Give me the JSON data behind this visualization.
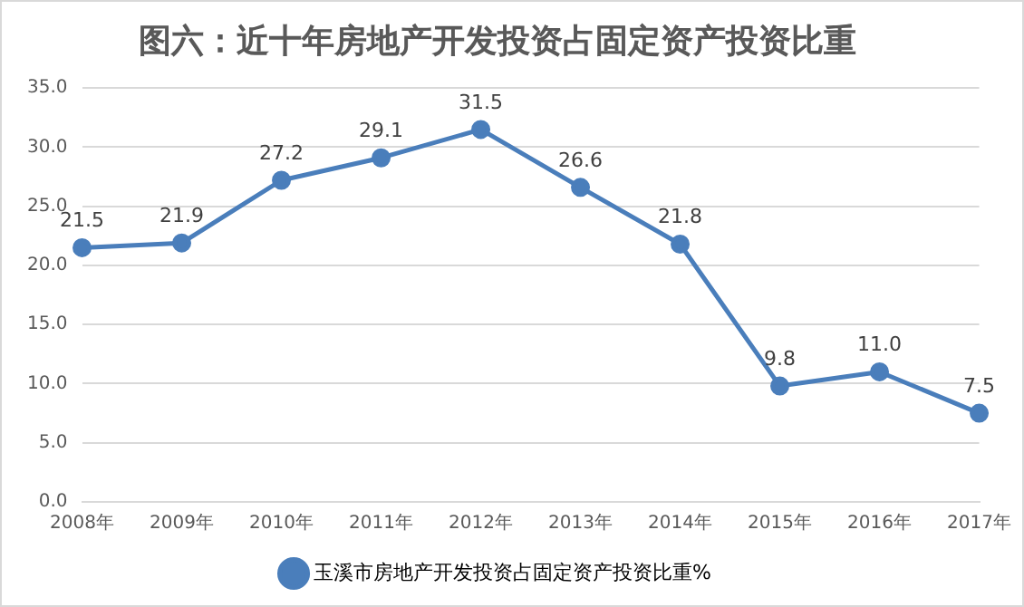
{
  "chart_data": {
    "type": "line",
    "title": "图六：近十年房地产开发投资占固定资产投资比重",
    "categories": [
      "2008年",
      "2009年",
      "2010年",
      "2011年",
      "2012年",
      "2013年",
      "2014年",
      "2015年",
      "2016年",
      "2017年"
    ],
    "series": [
      {
        "name": "玉溪市房地产开发投资占固定资产投资比重%",
        "color": "#4a7ebb",
        "values": [
          21.5,
          21.9,
          27.2,
          29.1,
          31.5,
          26.6,
          21.8,
          9.8,
          11.0,
          7.5
        ],
        "value_labels": [
          "21.5",
          "21.9",
          "27.2",
          "29.1",
          "31.5",
          "26.6",
          "21.8",
          "9.8",
          "11.0",
          "7.5"
        ]
      }
    ],
    "ylim": [
      0,
      35
    ],
    "yticks": [
      {
        "value": 0,
        "label": "0.0"
      },
      {
        "value": 5,
        "label": "5.0"
      },
      {
        "value": 10,
        "label": "10.0"
      },
      {
        "value": 15,
        "label": "15.0"
      },
      {
        "value": 20,
        "label": "20.0"
      },
      {
        "value": 25,
        "label": "25.0"
      },
      {
        "value": 30,
        "label": "30.0"
      },
      {
        "value": 35,
        "label": "35.0"
      }
    ],
    "grid": "y",
    "legend": "bottom",
    "marker": "circle",
    "line_style": "solid"
  }
}
